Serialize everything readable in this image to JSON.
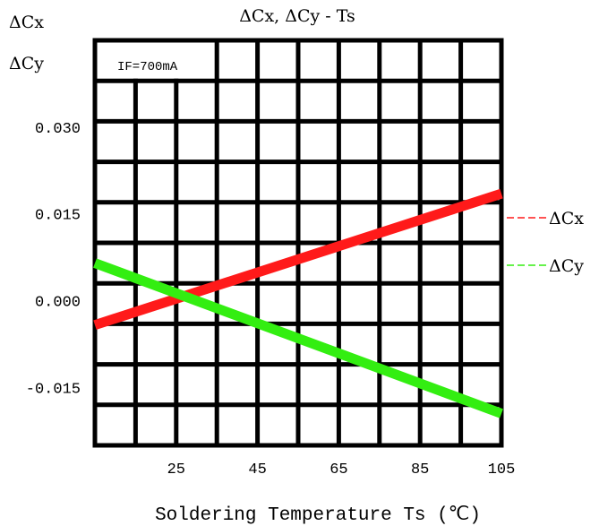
{
  "chart_data": {
    "type": "line",
    "title": "ΔCx,  ΔCy - Ts",
    "ylabel_top": "ΔCx",
    "ylabel_bottom": "ΔCy",
    "xlabel": "Soldering Temperature Ts (℃)",
    "annotation": "IF=700mA",
    "xlim": [
      5,
      105
    ],
    "ylim": [
      -0.025,
      0.045
    ],
    "x_ticks": [
      25,
      45,
      65,
      85,
      105
    ],
    "x_tick_labels": [
      "25",
      "45",
      "65",
      "85",
      "105"
    ],
    "y_ticks": [
      0.03,
      0.015,
      0.0,
      -0.015
    ],
    "y_tick_labels": [
      "0.030",
      "0.015",
      "0.000",
      "-0.015"
    ],
    "grid": true,
    "legend_position": "right",
    "series": [
      {
        "name": "ΔCx",
        "color": "#ff1a1a",
        "x": [
          5,
          105
        ],
        "y": [
          -0.0042,
          0.0185
        ]
      },
      {
        "name": "ΔCy",
        "color": "#33ee11",
        "x": [
          5,
          105
        ],
        "y": [
          0.0065,
          -0.0195
        ]
      }
    ]
  }
}
